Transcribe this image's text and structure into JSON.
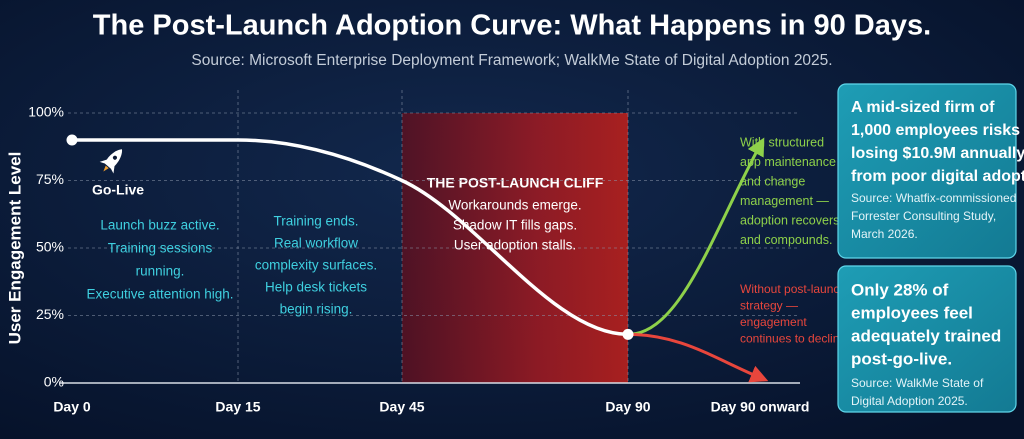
{
  "title": "The Post-Launch Adoption Curve: What Happens in 90 Days.",
  "subtitle": "Source: Microsoft Enterprise Deployment Framework; WalkMe State of Digital Adoption 2025.",
  "chart_data": {
    "type": "line",
    "y_label": "User Engagement Level",
    "categories": [
      "Day 0",
      "Day 15",
      "Day 45",
      "Day 90",
      "Day 90 onward"
    ],
    "ylim": [
      0,
      100
    ],
    "yticks": [
      {
        "value": 0,
        "label": "0%"
      },
      {
        "value": 25,
        "label": "25%"
      },
      {
        "value": 50,
        "label": "50%"
      },
      {
        "value": 75,
        "label": "75%"
      },
      {
        "value": 100,
        "label": "100%"
      }
    ],
    "grid": true,
    "series": [
      {
        "color": "#ffffff",
        "values": [
          90,
          90,
          75,
          18,
          null
        ]
      },
      {
        "color": "#8ed14a",
        "values": [
          null,
          null,
          null,
          18,
          88
        ]
      },
      {
        "color": "#e8463c",
        "values": [
          null,
          null,
          null,
          18,
          2
        ]
      }
    ],
    "annotations": {
      "go_live": "Go-Live",
      "phase_1": [
        "Launch buzz active.",
        "Training sessions",
        "running.",
        "Executive attention high."
      ],
      "phase_2": [
        "Training ends.",
        "Real workflow",
        "complexity surfaces.",
        "Help desk tickets",
        "begin rising."
      ],
      "cliff_title": "THE POST-LAUNCH CLIFF",
      "cliff": [
        "Workarounds emerge.",
        "Shadow IT fills gaps.",
        "User adoption stalls."
      ],
      "recovery": [
        "With structured",
        "app maintenance",
        "and change",
        "management —",
        "adoption recovers",
        "and compounds."
      ],
      "decline": [
        "Without post-launch",
        "strategy —",
        "engagement",
        "continues to decline."
      ]
    }
  },
  "cards": [
    {
      "headline": [
        "A mid-sized firm of",
        "1,000 employees risks",
        "losing $10.9M annually",
        "from poor digital adoption."
      ],
      "source": [
        "Source: Whatfix-commissioned",
        "Forrester Consulting Study,",
        "March 2026."
      ]
    },
    {
      "headline": [
        "Only 28% of",
        "employees feel",
        "adequately trained",
        "post-go-live."
      ],
      "source": [
        "Source: WalkMe State of",
        "Digital Adoption 2025."
      ]
    }
  ]
}
